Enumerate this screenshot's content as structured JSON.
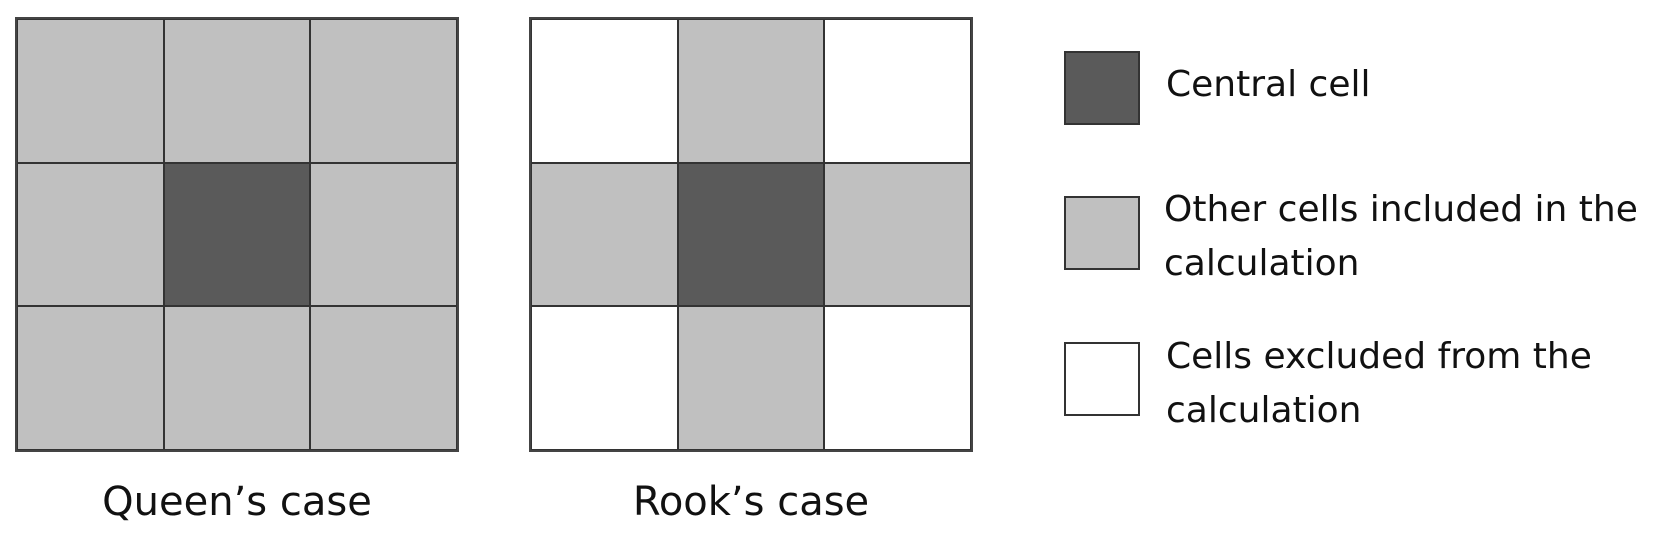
{
  "colors": {
    "central": "#5a5a5a",
    "included": "#c0c0c0",
    "excluded": "#ffffff"
  },
  "cases": [
    {
      "caption": "Queen’s case",
      "cells": [
        "included",
        "included",
        "included",
        "included",
        "central",
        "included",
        "included",
        "included",
        "included"
      ]
    },
    {
      "caption": "Rook’s case",
      "cells": [
        "excluded",
        "included",
        "excluded",
        "included",
        "central",
        "included",
        "excluded",
        "included",
        "excluded"
      ]
    }
  ],
  "legend": [
    {
      "type": "central",
      "lines": [
        "Central cell"
      ]
    },
    {
      "type": "included",
      "lines": [
        "Other cells included in the",
        "calculation"
      ]
    },
    {
      "type": "excluded",
      "lines": [
        "Cells excluded from the",
        "calculation"
      ]
    }
  ]
}
